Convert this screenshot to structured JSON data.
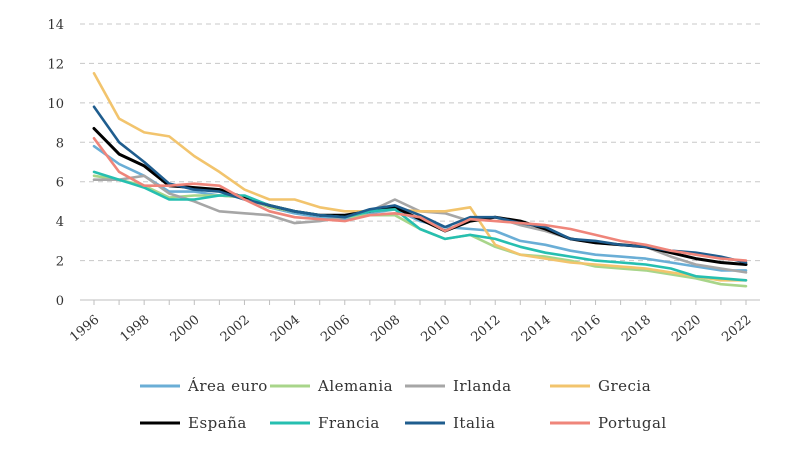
{
  "chart_data": {
    "type": "line",
    "title": "",
    "xlabel": "",
    "ylabel": "",
    "ylim": [
      0,
      14
    ],
    "yticks": [
      0,
      2,
      4,
      6,
      8,
      10,
      12,
      14
    ],
    "ytick_labels": [
      "0",
      "2",
      "4",
      "6",
      "8",
      "10",
      "12",
      "14"
    ],
    "xlim": [
      1996,
      2022
    ],
    "xticks": [
      1996,
      1998,
      2000,
      2002,
      2004,
      2006,
      2008,
      2010,
      2012,
      2014,
      2016,
      2018,
      2020,
      2022
    ],
    "xtick_labels": [
      "1996",
      "1998",
      "2000",
      "2002",
      "2004",
      "2006",
      "2008",
      "2010",
      "2012",
      "2014",
      "2016",
      "2018",
      "2020",
      "2022"
    ],
    "grid": "horizontal dashed",
    "legend_position": "bottom",
    "x": [
      1996,
      1997,
      1998,
      1999,
      2000,
      2001,
      2002,
      2003,
      2004,
      2005,
      2006,
      2007,
      2008,
      2009,
      2010,
      2011,
      2012,
      2013,
      2014,
      2015,
      2016,
      2017,
      2018,
      2019,
      2020,
      2021,
      2022
    ],
    "series": [
      {
        "name": "Área euro",
        "color": "#6aaed6",
        "values": [
          7.8,
          6.9,
          6.3,
          5.5,
          5.5,
          5.3,
          5.2,
          4.7,
          4.4,
          4.2,
          4.1,
          4.4,
          4.6,
          4.0,
          3.7,
          3.6,
          3.5,
          3.0,
          2.8,
          2.5,
          2.3,
          2.2,
          2.1,
          1.9,
          1.7,
          1.5,
          1.5
        ]
      },
      {
        "name": "Alemania",
        "color": "#a8d58a",
        "values": [
          6.3,
          6.1,
          5.8,
          5.2,
          5.3,
          5.3,
          5.2,
          4.7,
          4.5,
          4.3,
          4.2,
          4.3,
          4.3,
          3.6,
          3.1,
          3.3,
          2.7,
          2.3,
          2.2,
          2.0,
          1.7,
          1.6,
          1.5,
          1.3,
          1.1,
          0.8,
          0.7
        ]
      },
      {
        "name": "Irlanda",
        "color": "#a6a6a6",
        "values": [
          6.1,
          6.1,
          6.3,
          5.4,
          5.0,
          4.5,
          4.4,
          4.3,
          3.9,
          4.0,
          4.2,
          4.5,
          5.1,
          4.5,
          4.4,
          4.0,
          4.2,
          3.8,
          3.5,
          3.1,
          2.9,
          2.8,
          2.7,
          2.2,
          1.8,
          1.6,
          1.4
        ]
      },
      {
        "name": "Grecia",
        "color": "#f2c46d",
        "values": [
          11.5,
          9.2,
          8.5,
          8.3,
          7.3,
          6.5,
          5.6,
          5.1,
          5.1,
          4.7,
          4.5,
          4.5,
          4.6,
          4.5,
          4.5,
          4.7,
          2.8,
          2.3,
          2.1,
          1.9,
          1.8,
          1.7,
          1.6,
          1.4,
          1.2,
          1.0,
          1.0
        ]
      },
      {
        "name": "España",
        "color": "#000000",
        "values": [
          8.7,
          7.4,
          6.8,
          5.8,
          5.7,
          5.6,
          5.2,
          4.8,
          4.5,
          4.3,
          4.3,
          4.5,
          4.7,
          4.1,
          3.5,
          4.0,
          4.2,
          4.0,
          3.6,
          3.1,
          2.9,
          2.8,
          2.7,
          2.4,
          2.1,
          1.9,
          1.8
        ]
      },
      {
        "name": "Francia",
        "color": "#26bfb0",
        "values": [
          6.5,
          6.1,
          5.7,
          5.1,
          5.1,
          5.3,
          5.3,
          4.8,
          4.5,
          4.3,
          4.2,
          4.5,
          4.6,
          3.6,
          3.1,
          3.3,
          3.1,
          2.7,
          2.4,
          2.2,
          2.0,
          1.9,
          1.8,
          1.6,
          1.2,
          1.1,
          1.0
        ]
      },
      {
        "name": "Italia",
        "color": "#1f5d8e",
        "values": [
          9.8,
          8.0,
          7.0,
          5.9,
          5.6,
          5.5,
          5.1,
          4.8,
          4.5,
          4.3,
          4.2,
          4.6,
          4.8,
          4.3,
          3.7,
          4.2,
          4.2,
          3.9,
          3.7,
          3.1,
          3.0,
          2.8,
          2.7,
          2.5,
          2.4,
          2.2,
          1.9
        ]
      },
      {
        "name": "Portugal",
        "color": "#ef857a",
        "values": [
          8.2,
          6.5,
          5.8,
          5.8,
          5.9,
          5.8,
          5.1,
          4.5,
          4.2,
          4.1,
          4.0,
          4.3,
          4.4,
          4.2,
          3.5,
          4.1,
          4.0,
          3.9,
          3.8,
          3.6,
          3.3,
          3.0,
          2.8,
          2.5,
          2.3,
          2.1,
          2.0
        ]
      }
    ]
  }
}
